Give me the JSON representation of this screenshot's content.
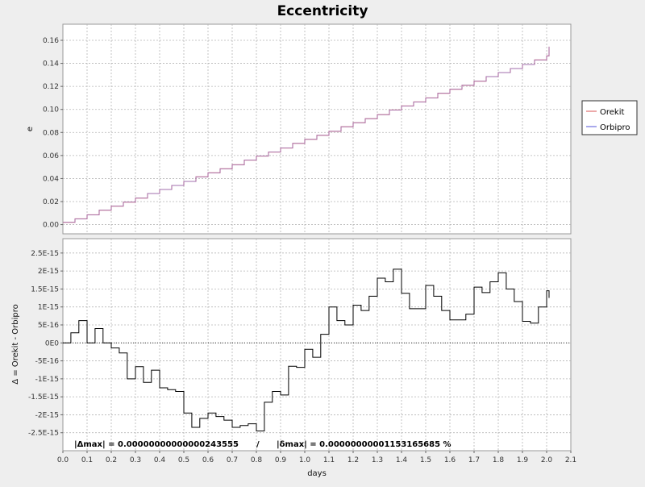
{
  "chart_data": [
    {
      "type": "line",
      "title": "Eccentricity",
      "ylabel": "e",
      "xlabel": "",
      "xlim": [
        0.0,
        2.1
      ],
      "ylim": [
        -0.008,
        0.174
      ],
      "grid": true,
      "legend_position": "right",
      "x_ticks": [
        "0.0",
        "0.1",
        "0.2",
        "0.3",
        "0.4",
        "0.5",
        "0.6",
        "0.7",
        "0.8",
        "0.9",
        "1.0",
        "1.1",
        "1.2",
        "1.3",
        "1.4",
        "1.5",
        "1.6",
        "1.7",
        "1.8",
        "1.9",
        "2.0",
        "2.1"
      ],
      "y_ticks": [
        "0.00",
        "0.02",
        "0.04",
        "0.06",
        "0.08",
        "0.10",
        "0.12",
        "0.14",
        "0.16"
      ],
      "legend": [
        "Orekit",
        "Orbipro"
      ],
      "colors": {
        "Orekit": "#e07070",
        "Orbipro": "#7070e0"
      },
      "series": [
        {
          "name": "Orekit",
          "x": [
            0.0,
            0.05,
            0.1,
            0.15,
            0.2,
            0.25,
            0.3,
            0.35,
            0.4,
            0.45,
            0.5,
            0.55,
            0.6,
            0.65,
            0.7,
            0.75,
            0.8,
            0.85,
            0.9,
            0.95,
            1.0,
            1.05,
            1.1,
            1.15,
            1.2,
            1.25,
            1.3,
            1.35,
            1.4,
            1.45,
            1.5,
            1.55,
            1.6,
            1.65,
            1.7,
            1.75,
            1.8,
            1.85,
            1.9,
            1.95,
            2.0,
            2.01
          ],
          "values": [
            0.002,
            0.005,
            0.0085,
            0.0125,
            0.016,
            0.0195,
            0.023,
            0.027,
            0.0305,
            0.034,
            0.0375,
            0.0415,
            0.045,
            0.0485,
            0.052,
            0.056,
            0.0595,
            0.063,
            0.0665,
            0.0705,
            0.074,
            0.0775,
            0.081,
            0.085,
            0.0885,
            0.092,
            0.0955,
            0.0995,
            0.103,
            0.1065,
            0.11,
            0.114,
            0.1175,
            0.121,
            0.1245,
            0.1285,
            0.132,
            0.1355,
            0.139,
            0.143,
            0.1465,
            0.1545
          ]
        },
        {
          "name": "Orbipro",
          "x": [
            0.0,
            0.05,
            0.1,
            0.15,
            0.2,
            0.25,
            0.3,
            0.35,
            0.4,
            0.45,
            0.5,
            0.55,
            0.6,
            0.65,
            0.7,
            0.75,
            0.8,
            0.85,
            0.9,
            0.95,
            1.0,
            1.05,
            1.1,
            1.15,
            1.2,
            1.25,
            1.3,
            1.35,
            1.4,
            1.45,
            1.5,
            1.55,
            1.6,
            1.65,
            1.7,
            1.75,
            1.8,
            1.85,
            1.9,
            1.95,
            2.0,
            2.01
          ],
          "values": [
            0.002,
            0.005,
            0.0085,
            0.0125,
            0.016,
            0.0195,
            0.023,
            0.027,
            0.0305,
            0.034,
            0.0375,
            0.0415,
            0.045,
            0.0485,
            0.052,
            0.056,
            0.0595,
            0.063,
            0.0665,
            0.0705,
            0.074,
            0.0775,
            0.081,
            0.085,
            0.0885,
            0.092,
            0.0955,
            0.0995,
            0.103,
            0.1065,
            0.11,
            0.114,
            0.1175,
            0.121,
            0.1245,
            0.1285,
            0.132,
            0.1355,
            0.139,
            0.143,
            0.1465,
            0.1545
          ]
        }
      ]
    },
    {
      "type": "line",
      "title": "",
      "xlabel": "days",
      "ylabel": "Δ = Orekit - Orbipro",
      "xlim": [
        0.0,
        2.1
      ],
      "ylim": [
        -3e-15,
        2.9e-15
      ],
      "grid": true,
      "x_ticks": [
        "0.0",
        "0.1",
        "0.2",
        "0.3",
        "0.4",
        "0.5",
        "0.6",
        "0.7",
        "0.8",
        "0.9",
        "1.0",
        "1.1",
        "1.2",
        "1.3",
        "1.4",
        "1.5",
        "1.6",
        "1.7",
        "1.8",
        "1.9",
        "2.0",
        "2.1"
      ],
      "y_ticks": [
        "-2.5E-15",
        "-2E-15",
        "-1.5E-15",
        "-1E-15",
        "-5E-16",
        "0E0",
        "5E-16",
        "1E-15",
        "1.5E-15",
        "2E-15",
        "2.5E-15"
      ],
      "colors": {
        "Δ": "#000000"
      },
      "stats": {
        "delta_max": "|Δmax| = 0.00000000000000243555",
        "separator": "/",
        "rel_max": "|δmax| = 0.00000000001153165685 %"
      },
      "series": [
        {
          "x": [
            0.0,
            0.033,
            0.066,
            0.1,
            0.133,
            0.166,
            0.2,
            0.233,
            0.266,
            0.3,
            0.333,
            0.366,
            0.4,
            0.433,
            0.466,
            0.5,
            0.533,
            0.566,
            0.6,
            0.633,
            0.666,
            0.7,
            0.733,
            0.766,
            0.8,
            0.833,
            0.866,
            0.9,
            0.933,
            0.966,
            1.0,
            1.033,
            1.066,
            1.1,
            1.133,
            1.166,
            1.2,
            1.233,
            1.266,
            1.3,
            1.333,
            1.366,
            1.4,
            1.433,
            1.466,
            1.5,
            1.533,
            1.566,
            1.6,
            1.633,
            1.666,
            1.7,
            1.733,
            1.766,
            1.8,
            1.833,
            1.866,
            1.9,
            1.933,
            1.966,
            2.0,
            2.01
          ],
          "values": [
            0.0,
            2.8e-16,
            6.2e-16,
            0.0,
            4e-16,
            0.0,
            -1.4e-16,
            -2.8e-16,
            -1e-15,
            -6.6e-16,
            -1.1e-15,
            -7.6e-16,
            -1.25e-15,
            -1.3e-15,
            -1.35e-15,
            -1.95e-15,
            -2.35e-15,
            -2.1e-15,
            -1.95e-15,
            -2.05e-15,
            -2.15e-15,
            -2.35e-15,
            -2.3e-15,
            -2.25e-15,
            -2.45e-15,
            -1.65e-15,
            -1.35e-15,
            -1.45e-15,
            -6.5e-16,
            -6.8e-16,
            -1.8e-16,
            -4e-16,
            2.4e-16,
            1e-15,
            6.2e-16,
            5e-16,
            1.05e-15,
            9e-16,
            1.3e-15,
            1.8e-15,
            1.7e-15,
            2.05e-15,
            1.38e-15,
            9.5e-16,
            9.5e-16,
            1.6e-15,
            1.3e-15,
            9e-16,
            6.4e-16,
            6.4e-16,
            8e-16,
            1.55e-15,
            1.4e-15,
            1.7e-15,
            1.95e-15,
            1.5e-15,
            1.15e-15,
            6e-16,
            5.5e-16,
            1e-15,
            1.45e-15,
            1.25e-15
          ]
        }
      ]
    }
  ]
}
